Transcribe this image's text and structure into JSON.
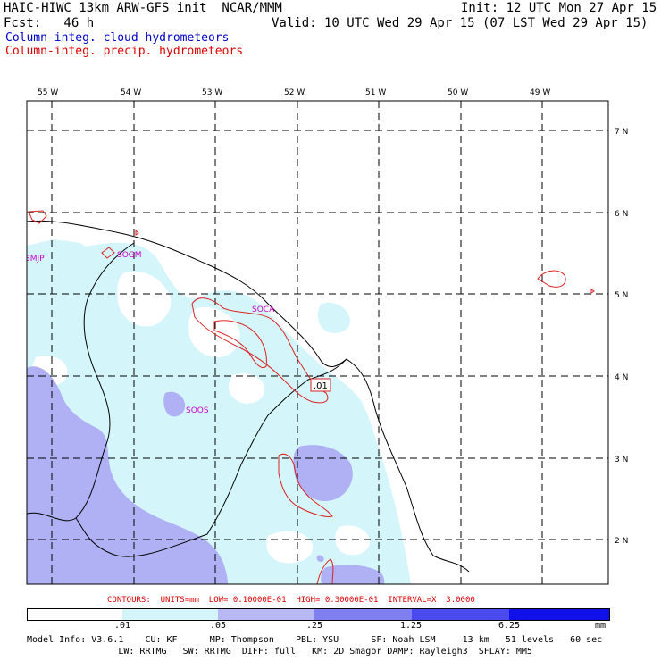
{
  "header": {
    "line1_left": "HAIC-HIWC 13km ARW-GFS init  NCAR/MMM",
    "line1_right": "Init: 12 UTC Mon 27 Apr 15",
    "line2_left": "Fcst:   46 h",
    "line2_right": "Valid: 10 UTC Wed 29 Apr 15 (07 LST Wed 29 Apr 15)",
    "legend_cloud": "Column-integ. cloud hydrometeors",
    "legend_precip": "Column-integ. precip. hydrometeors"
  },
  "map": {
    "lon_labels": [
      "55 W",
      "54 W",
      "53 W",
      "52 W",
      "51 W",
      "50 W",
      "49 W"
    ],
    "lat_labels": [
      "7 N",
      "6 N",
      "5 N",
      "4 N",
      "3 N",
      "2 N"
    ],
    "stations": [
      "SMJP",
      "SOGM",
      "SOCA",
      "SOOS"
    ],
    "contour_label": ".01"
  },
  "contours_line": "CONTOURS:  UNITS=mm  LOW= 0.10000E-01  HIGH= 0.30000E-01  INTERVAL=X  3.0000",
  "colorbar": {
    "ticks": [
      ".01",
      ".05",
      ".25",
      "1.25",
      "6.25"
    ],
    "unit": "mm",
    "colors": [
      "#ffffff",
      "#d4f6fb",
      "#b8b8f5",
      "#7f7ff0",
      "#4a4aee",
      "#1010e8"
    ]
  },
  "footer": {
    "line1": "Model Info: V3.6.1    CU: KF      MP: Thompson    PBL: YSU      SF: Noah LSM     13 km   51 levels   60 sec",
    "line2": "                 LW: RRTMG   SW: RRTMG  DIFF: full   KM: 2D Smagor DAMP: Rayleigh3  SFLAY: MM5"
  },
  "colors": {
    "cloud_text": "#0000cc",
    "precip_text": "#dd0000",
    "station_text": "#cc00cc",
    "contour_line": "#dd2222",
    "light_cloud": "#d4f6fb",
    "med_cloud": "#b0b0f5"
  }
}
